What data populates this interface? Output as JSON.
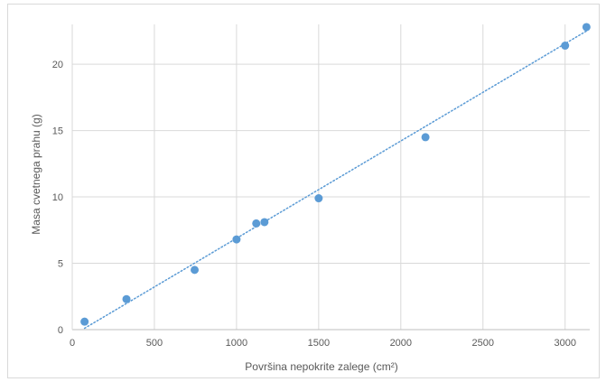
{
  "chart_data": {
    "type": "scatter",
    "xlabel": "Površina nepokrite zalege (cm²)",
    "ylabel": "Masa cvetnega prahu (g)",
    "xlim": [
      0,
      3150
    ],
    "ylim": [
      0,
      23
    ],
    "xticks": [
      0,
      500,
      1000,
      1500,
      2000,
      2500,
      3000
    ],
    "yticks": [
      0,
      5,
      10,
      15,
      20
    ],
    "grid": true,
    "trendline": {
      "type": "linear",
      "style": "dotted",
      "from": [
        75,
        0.1
      ],
      "to": [
        3130,
        22.5
      ]
    },
    "points": [
      {
        "x": 75,
        "y": 0.6
      },
      {
        "x": 330,
        "y": 2.3
      },
      {
        "x": 745,
        "y": 4.5
      },
      {
        "x": 1000,
        "y": 6.8
      },
      {
        "x": 1120,
        "y": 8.0
      },
      {
        "x": 1170,
        "y": 8.1
      },
      {
        "x": 1500,
        "y": 9.9
      },
      {
        "x": 2150,
        "y": 14.5
      },
      {
        "x": 3000,
        "y": 21.4
      },
      {
        "x": 3130,
        "y": 22.8
      }
    ],
    "colors": {
      "marker": "#5b9bd5",
      "trendline": "#5b9bd5",
      "grid": "#d9d9d9",
      "axis": "#bfbfbf",
      "text": "#595959"
    }
  }
}
